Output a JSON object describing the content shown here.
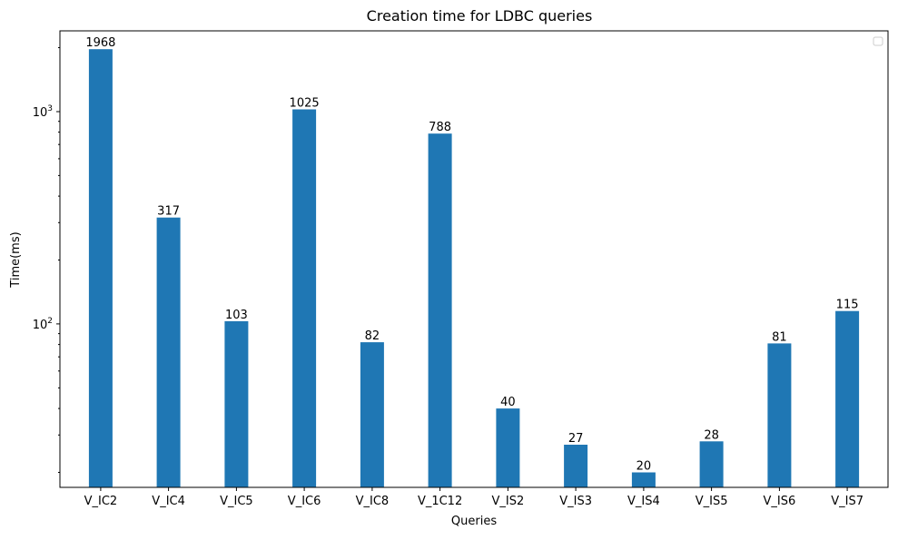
{
  "chart_data": {
    "type": "bar",
    "title": "Creation time for LDBC queries",
    "xlabel": "Queries",
    "ylabel": "Time(ms)",
    "y_scale": "log",
    "ylim": [
      17,
      2400
    ],
    "categories": [
      "V_IC2",
      "V_IC4",
      "V_IC5",
      "V_IC6",
      "V_IC8",
      "V_1C12",
      "V_IS2",
      "V_IS3",
      "V_IS4",
      "V_IS5",
      "V_IS6",
      "V_IS7"
    ],
    "values": [
      1968,
      317,
      103,
      1025,
      82,
      788,
      40,
      27,
      20,
      28,
      81,
      115
    ],
    "data_labels": [
      "1968",
      "317",
      "103",
      "1025",
      "82",
      "788",
      "40",
      "27",
      "20",
      "28",
      "81",
      "115"
    ],
    "y_major_ticks": [
      100,
      1000
    ],
    "y_major_tick_labels": [
      {
        "base": "10",
        "exp": "2"
      },
      {
        "base": "10",
        "exp": "3"
      }
    ],
    "grid": false,
    "legend": {
      "placement": "top-right",
      "entries": []
    },
    "bar_color": "#1f77b4"
  }
}
